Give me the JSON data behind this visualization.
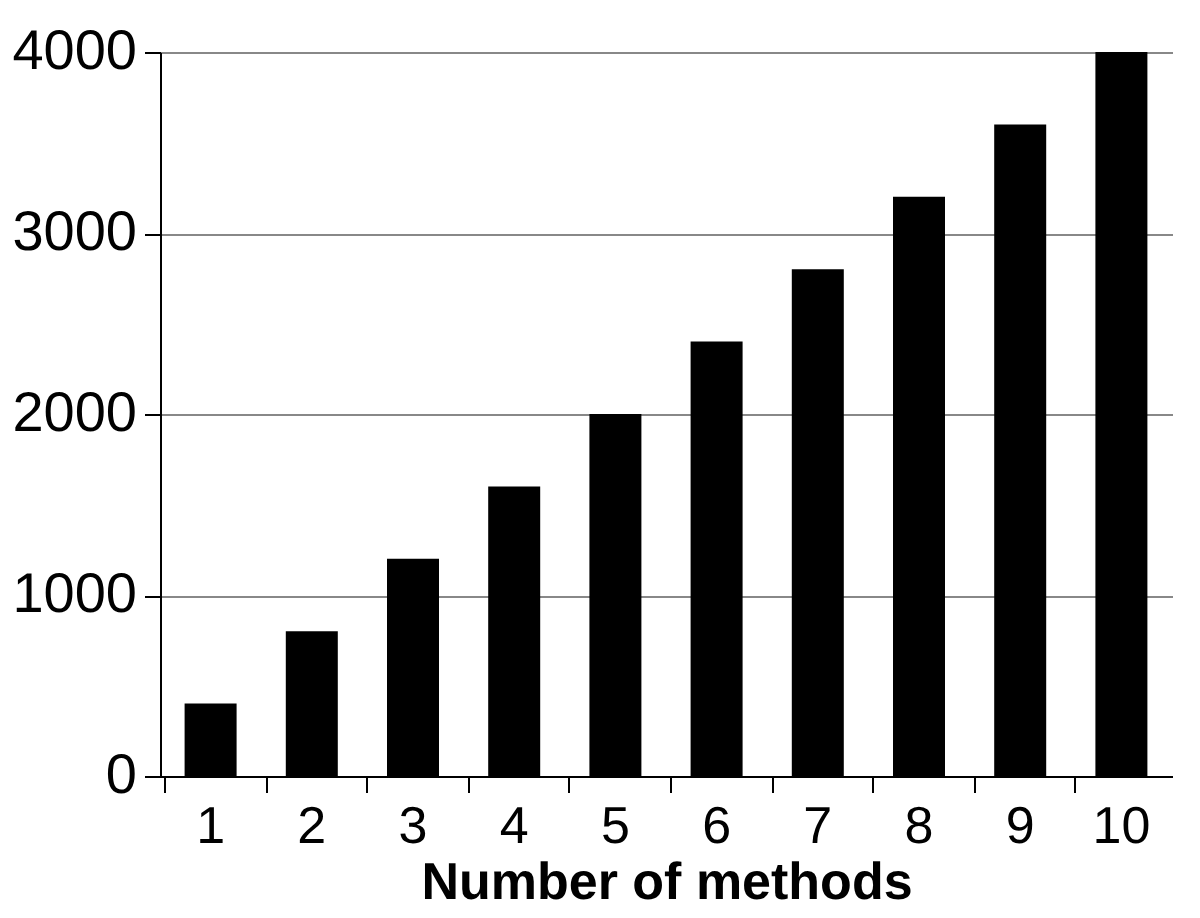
{
  "chart_data": {
    "type": "bar",
    "xlabel": "Number of methods",
    "categories": [
      "1",
      "2",
      "3",
      "4",
      "5",
      "6",
      "7",
      "8",
      "9",
      "10"
    ],
    "values": [
      400,
      800,
      1200,
      1600,
      2000,
      2400,
      2800,
      3200,
      3600,
      4000
    ],
    "color": "#000000",
    "ylim": [
      0,
      4000
    ],
    "yticks": [
      0,
      1000,
      2000,
      3000,
      4000
    ],
    "grid": "y"
  }
}
